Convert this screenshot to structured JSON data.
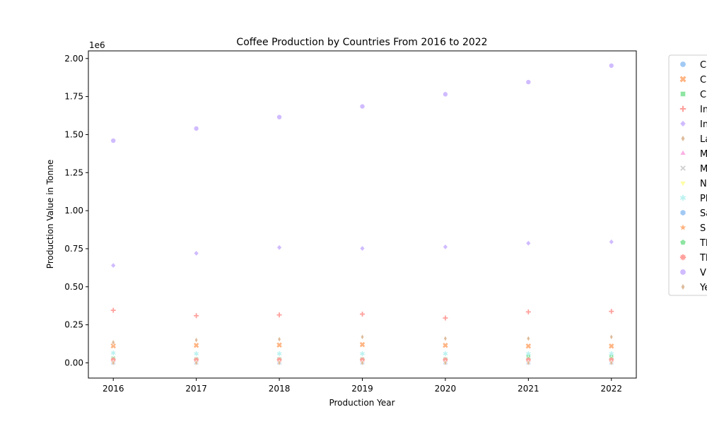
{
  "chart_data": {
    "type": "scatter",
    "title": "Coffee Production by Countries From 2016 to 2022",
    "xlabel": "Production Year",
    "ylabel": "Production Value in Tonne",
    "y_offset_label": "1e6",
    "x": [
      2016,
      2017,
      2018,
      2019,
      2020,
      2021,
      2022
    ],
    "xlim": [
      2015.7,
      2022.3
    ],
    "ylim": [
      -0.1,
      2.05
    ],
    "y_scale": 1000000,
    "yticks": [
      "0.00",
      "0.25",
      "0.50",
      "0.75",
      "1.00",
      "1.25",
      "1.50",
      "1.75",
      "2.00"
    ],
    "ytick_values": [
      0,
      0.25,
      0.5,
      0.75,
      1.0,
      1.25,
      1.5,
      1.75,
      2.0
    ],
    "grid": false,
    "legend_position": "outside-right",
    "series": [
      {
        "name": "C",
        "color": "#a1c9f4",
        "marker": "circle",
        "values": [
          0.005,
          0.005,
          0.005,
          0.005,
          0.005,
          0.005,
          0.005
        ]
      },
      {
        "name": "C",
        "color": "#ffb482",
        "marker": "x",
        "values": [
          0.112,
          0.115,
          0.117,
          0.12,
          0.115,
          0.11,
          0.11
        ]
      },
      {
        "name": "C",
        "color": "#8de5a1",
        "marker": "square",
        "values": [
          0.03,
          0.025,
          0.025,
          0.025,
          0.025,
          0.04,
          0.04
        ]
      },
      {
        "name": "In",
        "color": "#ff9f9b",
        "marker": "plus",
        "values": [
          0.345,
          0.31,
          0.315,
          0.32,
          0.295,
          0.335,
          0.338
        ]
      },
      {
        "name": "In",
        "color": "#d0bbff",
        "marker": "diamond",
        "values": [
          0.64,
          0.72,
          0.758,
          0.752,
          0.762,
          0.786,
          0.795
        ]
      },
      {
        "name": "La",
        "color": "#debb9b",
        "marker": "thin-diamond",
        "values": [
          0.135,
          0.15,
          0.155,
          0.17,
          0.16,
          0.16,
          0.17
        ]
      },
      {
        "name": "M",
        "color": "#fab0e4",
        "marker": "triangle-up",
        "values": [
          0.01,
          0.01,
          0.01,
          0.01,
          0.01,
          0.01,
          0.01
        ]
      },
      {
        "name": "M",
        "color": "#cfcfcf",
        "marker": "x-thin",
        "values": [
          0.0,
          0.0,
          0.0,
          0.0,
          0.0,
          0.0,
          0.0
        ]
      },
      {
        "name": "N",
        "color": "#fffea3",
        "marker": "triangle-down",
        "values": [
          0.002,
          0.002,
          0.002,
          0.002,
          0.002,
          0.002,
          0.002
        ]
      },
      {
        "name": "Pl",
        "color": "#b9f2f0",
        "marker": "star-thin",
        "values": [
          0.065,
          0.06,
          0.06,
          0.06,
          0.06,
          0.06,
          0.06
        ]
      },
      {
        "name": "Sa",
        "color": "#a1c9f4",
        "marker": "hexagon",
        "values": [
          0.0,
          0.0,
          0.0,
          0.0,
          0.0,
          0.0,
          0.0
        ]
      },
      {
        "name": "S",
        "color": "#ffb482",
        "marker": "star",
        "values": [
          0.015,
          0.015,
          0.015,
          0.015,
          0.015,
          0.015,
          0.015
        ]
      },
      {
        "name": "Th",
        "color": "#8de5a1",
        "marker": "pentagon",
        "values": [
          0.025,
          0.022,
          0.022,
          0.022,
          0.022,
          0.025,
          0.025
        ]
      },
      {
        "name": "Th",
        "color": "#ff9f9b",
        "marker": "asterisk",
        "values": [
          0.02,
          0.02,
          0.02,
          0.02,
          0.02,
          0.02,
          0.02
        ]
      },
      {
        "name": "V",
        "color": "#d0bbff",
        "marker": "circle",
        "values": [
          1.46,
          1.54,
          1.615,
          1.685,
          1.765,
          1.845,
          1.953
        ]
      },
      {
        "name": "Ye",
        "color": "#debb9b",
        "marker": "thin-diamond",
        "values": [
          0.0,
          0.0,
          0.0,
          0.0,
          0.0,
          0.0,
          0.0
        ]
      }
    ]
  }
}
